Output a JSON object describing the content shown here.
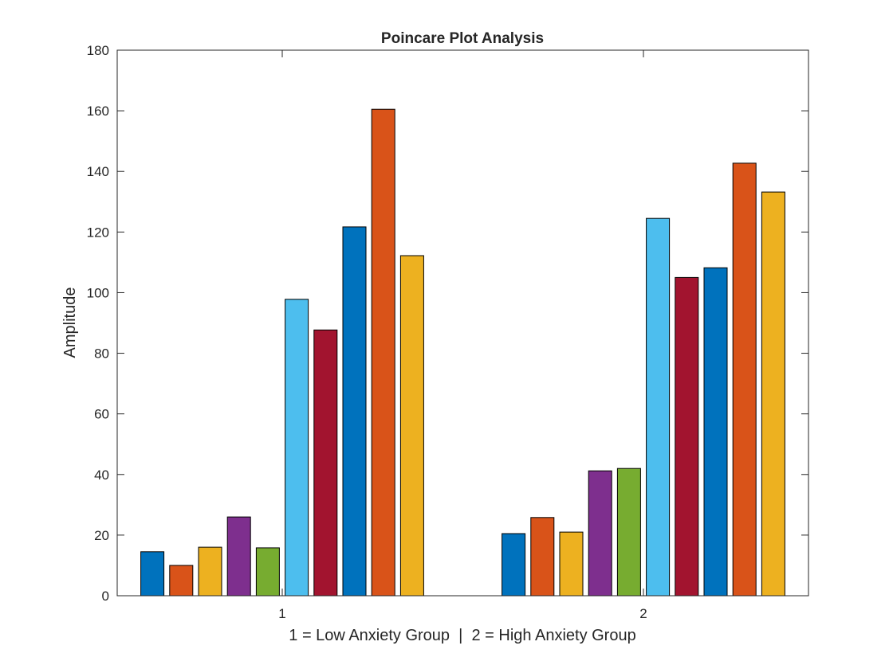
{
  "chart_data": {
    "type": "bar",
    "title": "Poincare Plot Analysis",
    "xlabel": "1 = Low Anxiety Group  |  2 = High Anxiety Group",
    "ylabel": "Amplitude",
    "categories": [
      "1",
      "2"
    ],
    "ylim": [
      0,
      180
    ],
    "yticks": [
      0,
      20,
      40,
      60,
      80,
      100,
      120,
      140,
      160,
      180
    ],
    "grid": false,
    "legend": "none",
    "series": [
      {
        "color": "#0072BD",
        "values": [
          14.5,
          20.5
        ]
      },
      {
        "color": "#D95319",
        "values": [
          10,
          25.8
        ]
      },
      {
        "color": "#EDB120",
        "values": [
          16,
          21
        ]
      },
      {
        "color": "#7E2F8E",
        "values": [
          26,
          41.2
        ]
      },
      {
        "color": "#77AC30",
        "values": [
          15.8,
          42
        ]
      },
      {
        "color": "#4DBEEE",
        "values": [
          97.8,
          124.5
        ]
      },
      {
        "color": "#A2142F",
        "values": [
          87.7,
          105
        ]
      },
      {
        "color": "#0072BD",
        "values": [
          121.7,
          108.2
        ]
      },
      {
        "color": "#D95319",
        "values": [
          160.5,
          142.7
        ]
      },
      {
        "color": "#EDB120",
        "values": [
          112.2,
          133.2
        ]
      }
    ]
  }
}
